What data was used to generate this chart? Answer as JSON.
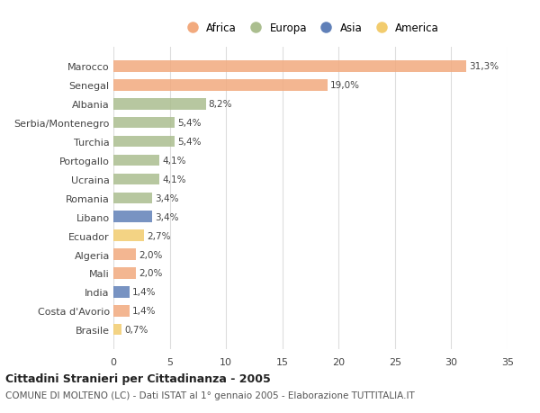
{
  "countries": [
    "Marocco",
    "Senegal",
    "Albania",
    "Serbia/Montenegro",
    "Turchia",
    "Portogallo",
    "Ucraina",
    "Romania",
    "Libano",
    "Ecuador",
    "Algeria",
    "Mali",
    "India",
    "Costa d'Avorio",
    "Brasile"
  ],
  "values": [
    31.3,
    19.0,
    8.2,
    5.4,
    5.4,
    4.1,
    4.1,
    3.4,
    3.4,
    2.7,
    2.0,
    2.0,
    1.4,
    1.4,
    0.7
  ],
  "labels": [
    "31,3%",
    "19,0%",
    "8,2%",
    "5,4%",
    "5,4%",
    "4,1%",
    "4,1%",
    "3,4%",
    "3,4%",
    "2,7%",
    "2,0%",
    "2,0%",
    "1,4%",
    "1,4%",
    "0,7%"
  ],
  "continents": [
    "Africa",
    "Africa",
    "Europa",
    "Europa",
    "Europa",
    "Europa",
    "Europa",
    "Europa",
    "Asia",
    "America",
    "Africa",
    "Africa",
    "Asia",
    "Africa",
    "America"
  ],
  "colors": {
    "Africa": "#F2AA7E",
    "Europa": "#ABBE8F",
    "Asia": "#6080B8",
    "America": "#F2CC6E"
  },
  "legend_order": [
    "Africa",
    "Europa",
    "Asia",
    "America"
  ],
  "title": "Cittadini Stranieri per Cittadinanza - 2005",
  "subtitle": "COMUNE DI MOLTENO (LC) - Dati ISTAT al 1° gennaio 2005 - Elaborazione TUTTITALIA.IT",
  "xlim": [
    0,
    35
  ],
  "xticks": [
    0,
    5,
    10,
    15,
    20,
    25,
    30,
    35
  ],
  "bg_color": "#FFFFFF",
  "grid_color": "#DDDDDD",
  "bar_height": 0.6
}
